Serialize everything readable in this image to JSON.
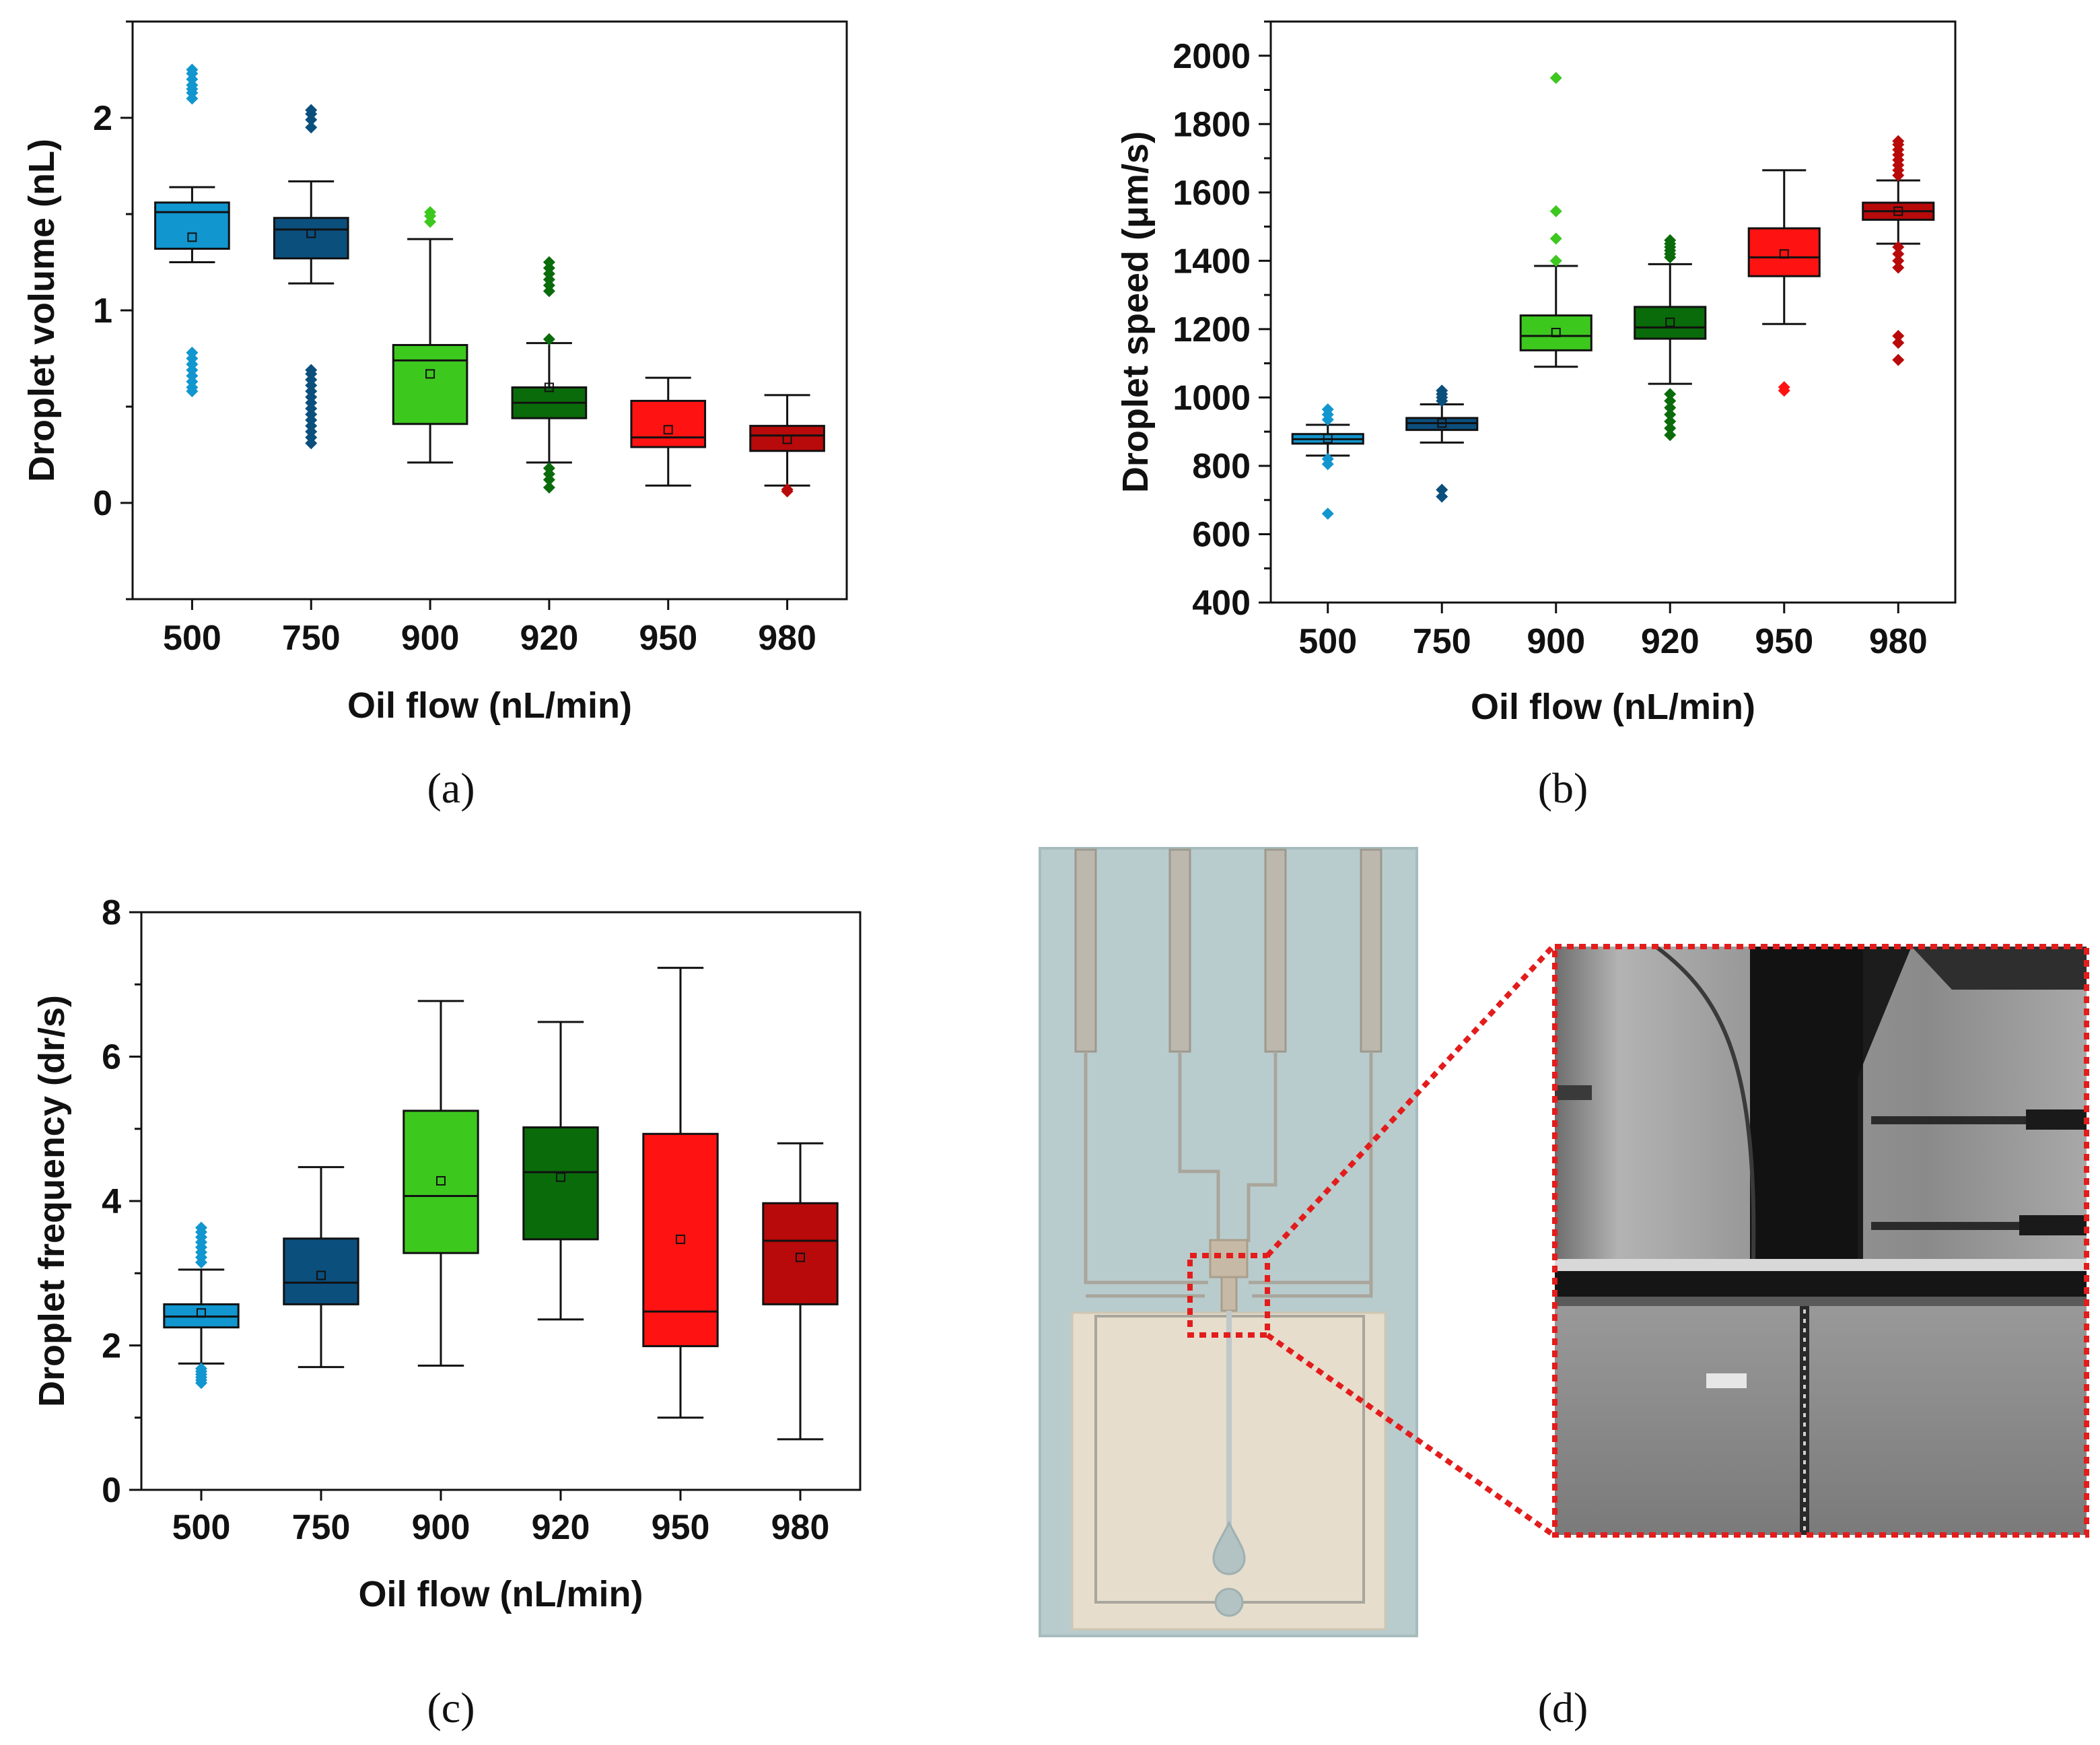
{
  "panels": [
    {
      "letter": "a",
      "label": "(a)"
    },
    {
      "letter": "b",
      "label": "(b)"
    },
    {
      "letter": "c",
      "label": "(c)"
    },
    {
      "letter": "d",
      "label": "(d)"
    }
  ],
  "colors": {
    "500": "#1196cf",
    "750": "#0b4f7d",
    "900": "#3dc81e",
    "920": "#0a6b0a",
    "950": "#ff1212",
    "980": "#b80a0a",
    "zoom_frame": "#e31c1c",
    "chip_bg": "#b9cccd",
    "chip_chamber": "#e6ddcc"
  },
  "chart_data": [
    {
      "type": "box",
      "panel": "a",
      "title": "",
      "xlabel": "Oil flow (nL/min)",
      "ylabel": "Droplet volume (nL)",
      "ylim": [
        -0.5,
        2.5
      ],
      "yticks": [
        0,
        1,
        2
      ],
      "yticks_minor": [
        -0.5,
        0.5,
        1.5,
        2.5
      ],
      "categories": [
        "500",
        "750",
        "900",
        "920",
        "950",
        "980"
      ],
      "boxes": [
        {
          "q1": 1.32,
          "median": 1.51,
          "q3": 1.56,
          "mean": 1.38,
          "whisker_low": 1.25,
          "whisker_high": 1.64,
          "outliers": [
            0.58,
            0.6,
            0.63,
            0.66,
            0.69,
            0.72,
            0.75,
            0.78,
            2.1,
            2.13,
            2.15,
            2.17,
            2.2,
            2.23,
            2.25
          ]
        },
        {
          "q1": 1.27,
          "median": 1.42,
          "q3": 1.48,
          "mean": 1.4,
          "whisker_low": 1.14,
          "whisker_high": 1.67,
          "outliers": [
            0.31,
            0.34,
            0.37,
            0.4,
            0.43,
            0.46,
            0.49,
            0.52,
            0.55,
            0.58,
            0.61,
            0.64,
            0.67,
            0.69,
            1.95,
            1.99,
            2.02,
            2.04
          ]
        },
        {
          "q1": 0.41,
          "median": 0.74,
          "q3": 0.82,
          "mean": 0.67,
          "whisker_low": 0.21,
          "whisker_high": 1.37,
          "outliers": [
            1.46,
            1.49,
            1.51
          ]
        },
        {
          "q1": 0.44,
          "median": 0.52,
          "q3": 0.6,
          "mean": 0.6,
          "whisker_low": 0.21,
          "whisker_high": 0.83,
          "outliers": [
            0.08,
            0.12,
            0.15,
            0.18,
            0.85,
            1.1,
            1.13,
            1.16,
            1.19,
            1.22,
            1.25
          ]
        },
        {
          "q1": 0.29,
          "median": 0.34,
          "q3": 0.53,
          "mean": 0.38,
          "whisker_low": 0.09,
          "whisker_high": 0.65,
          "outliers": []
        },
        {
          "q1": 0.27,
          "median": 0.35,
          "q3": 0.4,
          "mean": 0.33,
          "whisker_low": 0.09,
          "whisker_high": 0.56,
          "outliers": [
            0.06,
            0.07
          ]
        }
      ]
    },
    {
      "type": "box",
      "panel": "b",
      "title": "",
      "xlabel": "Oil flow (nL/min)",
      "ylabel": "Droplet speed (μm/s)",
      "ylim": [
        400,
        2100
      ],
      "yticks": [
        400,
        600,
        800,
        1000,
        1200,
        1400,
        1600,
        1800,
        2000
      ],
      "yticks_minor": [
        500,
        700,
        900,
        1100,
        1300,
        1500,
        1700,
        1900,
        2100
      ],
      "categories": [
        "500",
        "750",
        "900",
        "920",
        "950",
        "980"
      ],
      "boxes": [
        {
          "q1": 865,
          "median": 878,
          "q3": 893,
          "mean": 880,
          "whisker_low": 830,
          "whisker_high": 920,
          "outliers": [
            660,
            805,
            820,
            935,
            950,
            965
          ]
        },
        {
          "q1": 905,
          "median": 925,
          "q3": 940,
          "mean": 925,
          "whisker_low": 868,
          "whisker_high": 980,
          "outliers": [
            710,
            730,
            990,
            1000,
            1010,
            1020
          ]
        },
        {
          "q1": 1138,
          "median": 1180,
          "q3": 1240,
          "mean": 1190,
          "whisker_low": 1090,
          "whisker_high": 1385,
          "outliers": [
            1400,
            1465,
            1545,
            1935
          ]
        },
        {
          "q1": 1172,
          "median": 1205,
          "q3": 1265,
          "mean": 1220,
          "whisker_low": 1040,
          "whisker_high": 1390,
          "outliers": [
            890,
            910,
            930,
            950,
            970,
            990,
            1010,
            1410,
            1420,
            1430,
            1440,
            1450,
            1460
          ]
        },
        {
          "q1": 1355,
          "median": 1410,
          "q3": 1495,
          "mean": 1420,
          "whisker_low": 1215,
          "whisker_high": 1665,
          "outliers": [
            1020,
            1030
          ]
        },
        {
          "q1": 1520,
          "median": 1545,
          "q3": 1570,
          "mean": 1545,
          "whisker_low": 1450,
          "whisker_high": 1635,
          "outliers": [
            1110,
            1160,
            1180,
            1380,
            1400,
            1420,
            1440,
            1650,
            1665,
            1680,
            1695,
            1710,
            1725,
            1740,
            1750
          ]
        }
      ]
    },
    {
      "type": "box",
      "panel": "c",
      "title": "",
      "xlabel": "Oil flow (nL/min)",
      "ylabel": "Droplet frequency (dr/s)",
      "ylim": [
        0,
        8
      ],
      "yticks": [
        0,
        2,
        4,
        6,
        8
      ],
      "yticks_minor": [
        1,
        3,
        5,
        7
      ],
      "categories": [
        "500",
        "750",
        "900",
        "920",
        "950",
        "980"
      ],
      "boxes": [
        {
          "q1": 2.25,
          "median": 2.4,
          "q3": 2.57,
          "mean": 2.45,
          "whisker_low": 1.75,
          "whisker_high": 3.05,
          "outliers": [
            1.48,
            1.52,
            1.56,
            1.6,
            1.64,
            1.68,
            3.15,
            3.22,
            3.29,
            3.36,
            3.43,
            3.5,
            3.57,
            3.63
          ]
        },
        {
          "q1": 2.57,
          "median": 2.87,
          "q3": 3.48,
          "mean": 2.97,
          "whisker_low": 1.7,
          "whisker_high": 4.47,
          "outliers": []
        },
        {
          "q1": 3.28,
          "median": 4.07,
          "q3": 5.25,
          "mean": 4.28,
          "whisker_low": 1.72,
          "whisker_high": 6.77,
          "outliers": []
        },
        {
          "q1": 3.47,
          "median": 4.4,
          "q3": 5.02,
          "mean": 4.33,
          "whisker_low": 2.36,
          "whisker_high": 6.48,
          "outliers": []
        },
        {
          "q1": 1.99,
          "median": 2.47,
          "q3": 4.93,
          "mean": 3.47,
          "whisker_low": 1.0,
          "whisker_high": 7.23,
          "outliers": []
        },
        {
          "q1": 2.57,
          "median": 3.45,
          "q3": 3.97,
          "mean": 3.22,
          "whisker_low": 0.7,
          "whisker_high": 4.8,
          "outliers": []
        }
      ]
    }
  ]
}
